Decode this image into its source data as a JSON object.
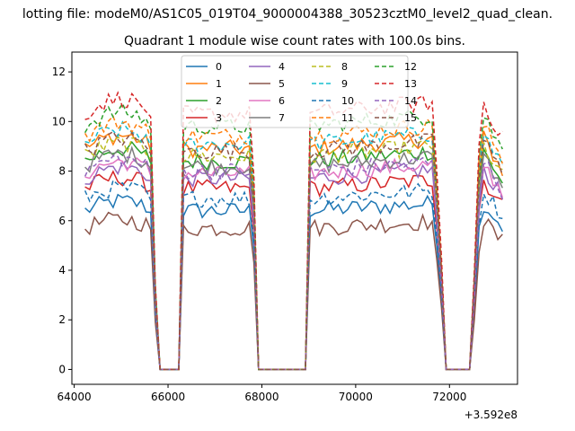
{
  "chart_data": {
    "type": "line",
    "suptitle": "lotting file: modeM0/AS1C05_019T04_9000004388_30523cztM0_level2_quad_clean.",
    "title": "Quadrant 1 module wise count rates with 100.0s bins.",
    "xlabel": "",
    "ylabel": "",
    "x_offset_label": "+3.592e8",
    "xlim": [
      63950,
      73450
    ],
    "ylim": [
      -0.6,
      12.8
    ],
    "xticks": [
      64000,
      66000,
      68000,
      70000,
      72000
    ],
    "yticks": [
      0,
      2,
      4,
      6,
      8,
      10,
      12
    ],
    "grid": false,
    "legend": {
      "placement": "top-center",
      "columns": 4
    },
    "series": [
      {
        "name": "0",
        "color": "#1f77b4",
        "style": "solid",
        "level": 6.4
      },
      {
        "name": "1",
        "color": "#ff7f0e",
        "style": "solid",
        "level": 8.9
      },
      {
        "name": "2",
        "color": "#2ca02c",
        "style": "solid",
        "level": 8.4
      },
      {
        "name": "3",
        "color": "#d62728",
        "style": "solid",
        "level": 7.3
      },
      {
        "name": "4",
        "color": "#9467bd",
        "style": "solid",
        "level": 7.7
      },
      {
        "name": "5",
        "color": "#8c564b",
        "style": "solid",
        "level": 5.7
      },
      {
        "name": "6",
        "color": "#e377c2",
        "style": "solid",
        "level": 7.9
      },
      {
        "name": "7",
        "color": "#7f7f7f",
        "style": "solid",
        "level": 8.2
      },
      {
        "name": "8",
        "color": "#bcbd22",
        "style": "dashed",
        "level": 8.6
      },
      {
        "name": "9",
        "color": "#17becf",
        "style": "dashed",
        "level": 9.1
      },
      {
        "name": "10",
        "color": "#1f77b4",
        "style": "dashed",
        "level": 6.9
      },
      {
        "name": "11",
        "color": "#ff7f0e",
        "style": "dashed",
        "level": 9.4
      },
      {
        "name": "12",
        "color": "#2ca02c",
        "style": "dashed",
        "level": 9.8
      },
      {
        "name": "13",
        "color": "#d62728",
        "style": "dashed",
        "level": 10.3
      },
      {
        "name": "14",
        "color": "#9467bd",
        "style": "dashed",
        "level": 8.0
      },
      {
        "name": "15",
        "color": "#8c564b",
        "style": "dashed",
        "level": 8.8
      }
    ],
    "segments": [
      {
        "start": 64230,
        "end": 65750,
        "ramp_end": 65820
      },
      {
        "start": 66300,
        "end": 67920,
        "ramp_end": 68000
      },
      {
        "start": 68950,
        "end": 71900,
        "ramp_end": 71990
      },
      {
        "start": 72450,
        "end": 73130,
        "ramp_end": 73130
      }
    ],
    "bin_seconds": 100
  }
}
